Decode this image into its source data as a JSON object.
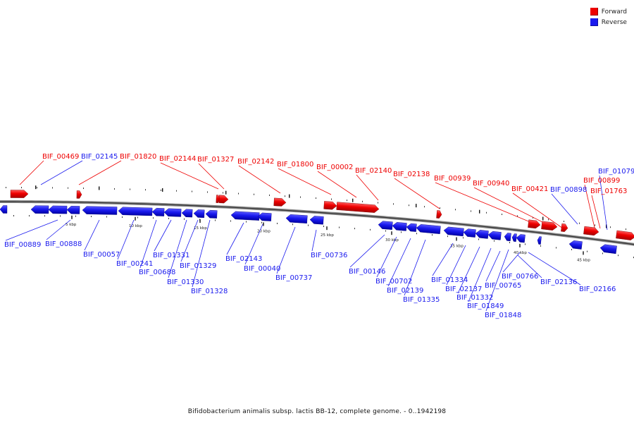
{
  "legend": {
    "forward_label": "Forward",
    "reverse_label": "Reverse",
    "forward_color": "#ee0000",
    "reverse_color": "#1a1aee"
  },
  "footer": "Bifidobacterium animalis subsp. lactis BB-12, complete genome. - 0..1942198",
  "scale_unit": "kbp",
  "ticks": [
    "5 kbp",
    "10 kbp",
    "15 kbp",
    "20 kbp",
    "25 kbp",
    "30 kbp",
    "35 kbp",
    "40 kbp",
    "45 kbp"
  ],
  "genes": {
    "forward": [
      "BIF_00469",
      "BIF_01820",
      "BIF_02144",
      "BIF_01327",
      "BIF_02142",
      "BIF_01800",
      "BIF_00002",
      "BIF_02140",
      "BIF_02138",
      "BIF_00939",
      "BIF_00940",
      "BIF_00421",
      "BIF_00899",
      "BIF_01763"
    ],
    "reverse": [
      "BIF_02145",
      "BIF_00898",
      "BIF_01079",
      "BIF_00889",
      "BIF_00888",
      "BIF_00057",
      "BIF_00241",
      "BIF_00688",
      "BIF_01331",
      "BIF_01330",
      "BIF_01329",
      "BIF_01328",
      "BIF_02143",
      "BIF_00040",
      "BIF_00737",
      "BIF_00736",
      "BIF_00146",
      "BIF_00702",
      "BIF_02139",
      "BIF_01335",
      "BIF_01334",
      "BIF_02137",
      "BIF_01332",
      "BIF_01849",
      "BIF_01848",
      "BIF_00765",
      "BIF_00766",
      "BIF_02136",
      "BIF_02166"
    ]
  }
}
